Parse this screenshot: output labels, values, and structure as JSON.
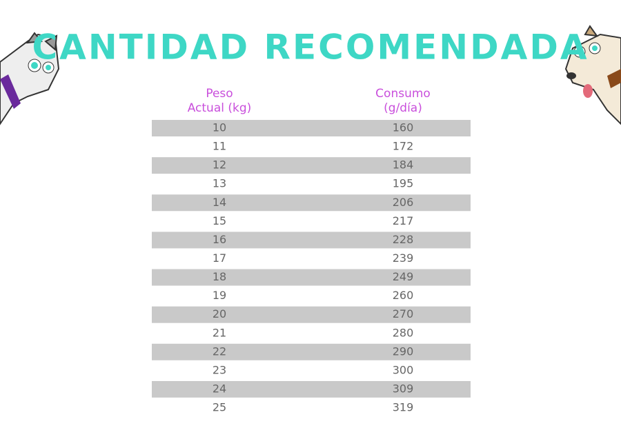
{
  "title": "CANTIDAD RECOMENDADA",
  "table": {
    "headers": [
      [
        "Peso",
        "Actual (kg)"
      ],
      [
        "Consumo",
        "(g/día)"
      ]
    ],
    "rows": [
      [
        10,
        160
      ],
      [
        11,
        172
      ],
      [
        12,
        184
      ],
      [
        13,
        195
      ],
      [
        14,
        206
      ],
      [
        15,
        217
      ],
      [
        16,
        228
      ],
      [
        17,
        239
      ],
      [
        18,
        249
      ],
      [
        19,
        260
      ],
      [
        20,
        270
      ],
      [
        21,
        280
      ],
      [
        22,
        290
      ],
      [
        23,
        300
      ],
      [
        24,
        309
      ],
      [
        25,
        319
      ]
    ]
  }
}
